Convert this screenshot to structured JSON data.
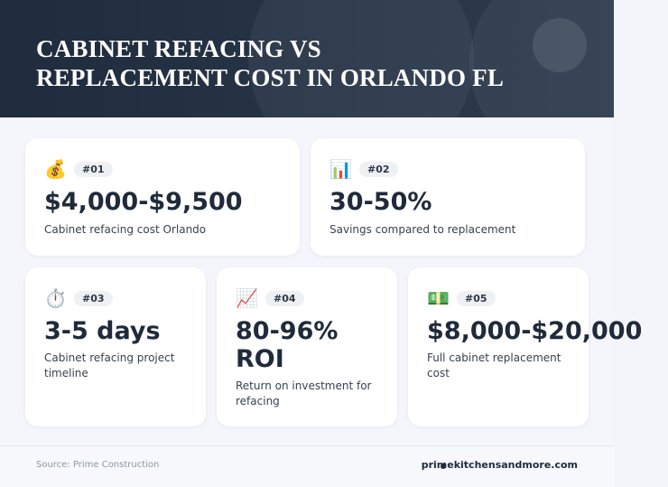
{
  "header": {
    "title": "CABINET REFACING VS REPLACEMENT COST IN ORLANDO FL"
  },
  "cards": [
    {
      "icon": "💰",
      "badge": "#01",
      "value": "$4,000-$9,500",
      "label": "Cabinet refacing cost Orlando"
    },
    {
      "icon": "📊",
      "badge": "#02",
      "value": "30-50%",
      "label": "Savings compared to replacement"
    },
    {
      "icon": "⏱️",
      "badge": "#03",
      "value": "3-5 days",
      "label": "Cabinet refacing project timeline"
    },
    {
      "icon": "📈",
      "badge": "#04",
      "value": "80-96% ROI",
      "label": "Return on investment for refacing"
    },
    {
      "icon": "💵",
      "badge": "#05",
      "value": "$8,000-$20,000",
      "label": "Full cabinet replacement cost"
    }
  ],
  "footer": {
    "source": "Source: Prime Construction",
    "site": "primekitchensandmore.com"
  }
}
